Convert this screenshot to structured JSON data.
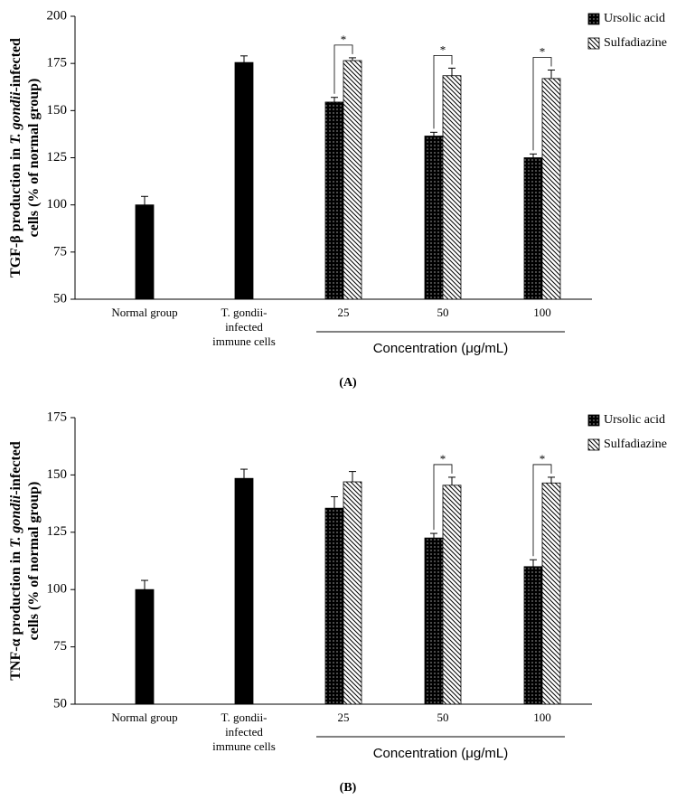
{
  "chart_data": [
    {
      "type": "bar",
      "ylabel": [
        [
          "TGF-β production in ",
          "T. gondii",
          "-infected"
        ],
        [
          "cells (% of normal group)"
        ]
      ],
      "categories": [
        [
          "Normal group"
        ],
        [
          "T. gondii-",
          "infected",
          "immune cells"
        ],
        [
          "25"
        ],
        [
          "50"
        ],
        [
          "100"
        ]
      ],
      "xlabel": "Concentration (μg/mL)",
      "panel": "(A)",
      "ylim": [
        50,
        200
      ],
      "yticks": [
        50,
        75,
        100,
        125,
        150,
        175,
        200
      ],
      "control_color": "#000000",
      "control_values": [
        100,
        175.5,
        null,
        null,
        null
      ],
      "control_errors": [
        4.5,
        3.5,
        null,
        null,
        null
      ],
      "series": [
        {
          "name": "Ursolic acid",
          "color": "#000000",
          "values": [
            null,
            null,
            154.5,
            136.5,
            125
          ],
          "errors": [
            null,
            null,
            2.5,
            2,
            2
          ]
        },
        {
          "name": "Sulfadiazine",
          "color": "#ffffff",
          "values": [
            null,
            null,
            176.5,
            168.5,
            167
          ],
          "errors": [
            null,
            null,
            1.5,
            4,
            4.5
          ]
        }
      ],
      "significance": [
        null,
        null,
        "*",
        "*",
        "*"
      ]
    },
    {
      "type": "bar",
      "ylabel": [
        [
          "TNF-α production in ",
          "T. gondii",
          "-infected"
        ],
        [
          "cells (% of normal group)"
        ]
      ],
      "categories": [
        [
          "Normal group"
        ],
        [
          "T. gondii-",
          "infected",
          "immune cells"
        ],
        [
          "25"
        ],
        [
          "50"
        ],
        [
          "100"
        ]
      ],
      "xlabel": "Concentration (μg/mL)",
      "panel": "(B)",
      "ylim": [
        50,
        175
      ],
      "yticks": [
        50,
        75,
        100,
        125,
        150,
        175
      ],
      "control_color": "#000000",
      "control_values": [
        100,
        148.5,
        null,
        null,
        null
      ],
      "control_errors": [
        4,
        4,
        null,
        null,
        null
      ],
      "series": [
        {
          "name": "Ursolic acid",
          "color": "#000000",
          "values": [
            null,
            null,
            135.5,
            122.5,
            110
          ],
          "errors": [
            null,
            null,
            5,
            2,
            3
          ]
        },
        {
          "name": "Sulfadiazine",
          "color": "#ffffff",
          "values": [
            null,
            null,
            147,
            145.5,
            146.5
          ],
          "errors": [
            null,
            null,
            4.5,
            3.5,
            2.5
          ]
        }
      ],
      "significance": [
        null,
        null,
        null,
        "*",
        "*"
      ]
    }
  ]
}
